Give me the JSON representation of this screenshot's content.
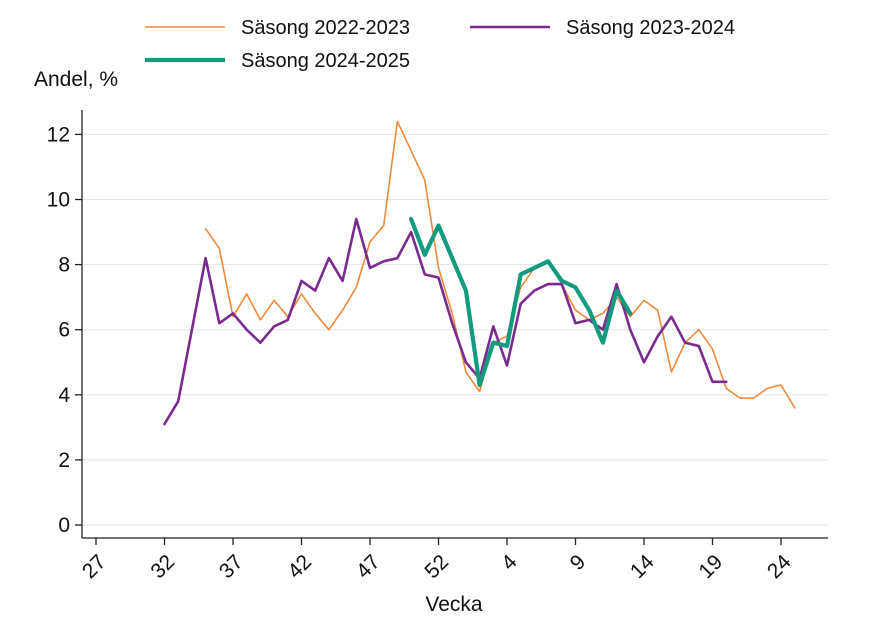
{
  "chart_data": {
    "type": "line",
    "ylabel": "Andel, %",
    "xlabel": "Vecka",
    "x_tick_labels": [
      "27",
      "32",
      "37",
      "42",
      "47",
      "52",
      "4",
      "9",
      "14",
      "19",
      "24"
    ],
    "y_tick_labels": [
      "0",
      "2",
      "4",
      "6",
      "8",
      "10",
      "12"
    ],
    "ylim": [
      0,
      12.5
    ],
    "grid": true,
    "legend_position": "top",
    "x_axis_note": "season week index 0 = week 27 ... 52 = week 27 of the following year",
    "series": [
      {
        "name": "Säsong 2022-2023",
        "color": "#f08a3c",
        "style": "thin",
        "points": [
          [
            8,
            9.1
          ],
          [
            9,
            8.5
          ],
          [
            10,
            6.4
          ],
          [
            11,
            7.1
          ],
          [
            12,
            6.3
          ],
          [
            13,
            6.9
          ],
          [
            14,
            6.4
          ],
          [
            15,
            7.1
          ],
          [
            16,
            6.5
          ],
          [
            17,
            6.0
          ],
          [
            18,
            6.6
          ],
          [
            19,
            7.3
          ],
          [
            20,
            8.7
          ],
          [
            21,
            9.2
          ],
          [
            22,
            12.4
          ],
          [
            23,
            11.5
          ],
          [
            24,
            10.6
          ],
          [
            25,
            7.9
          ],
          [
            26,
            6.5
          ],
          [
            27,
            4.7
          ],
          [
            28,
            4.1
          ],
          [
            29,
            5.6
          ],
          [
            30,
            5.8
          ],
          [
            31,
            7.3
          ],
          [
            32,
            7.9
          ],
          [
            33,
            8.1
          ],
          [
            34,
            7.4
          ],
          [
            35,
            6.6
          ],
          [
            36,
            6.3
          ],
          [
            37,
            6.5
          ],
          [
            38,
            7.0
          ],
          [
            39,
            6.4
          ],
          [
            40,
            6.9
          ],
          [
            41,
            6.6
          ],
          [
            42,
            4.7
          ],
          [
            43,
            5.6
          ],
          [
            44,
            6.0
          ],
          [
            45,
            5.4
          ],
          [
            46,
            4.2
          ],
          [
            47,
            3.9
          ],
          [
            48,
            3.9
          ],
          [
            49,
            4.2
          ],
          [
            50,
            4.3
          ],
          [
            51,
            3.6
          ]
        ]
      },
      {
        "name": "Säsong 2023-2024",
        "color": "#7a2b8e",
        "style": "medium",
        "points": [
          [
            5,
            3.1
          ],
          [
            6,
            3.8
          ],
          [
            7,
            6.0
          ],
          [
            8,
            8.2
          ],
          [
            9,
            6.2
          ],
          [
            10,
            6.5
          ],
          [
            11,
            6.0
          ],
          [
            12,
            5.6
          ],
          [
            13,
            6.1
          ],
          [
            14,
            6.3
          ],
          [
            15,
            7.5
          ],
          [
            16,
            7.2
          ],
          [
            17,
            8.2
          ],
          [
            18,
            7.5
          ],
          [
            19,
            9.4
          ],
          [
            20,
            7.9
          ],
          [
            21,
            8.1
          ],
          [
            22,
            8.2
          ],
          [
            23,
            9.0
          ],
          [
            24,
            7.7
          ],
          [
            25,
            7.6
          ],
          [
            26,
            6.2
          ],
          [
            27,
            5.0
          ],
          [
            28,
            4.5
          ],
          [
            29,
            6.1
          ],
          [
            30,
            4.9
          ],
          [
            31,
            6.8
          ],
          [
            32,
            7.2
          ],
          [
            33,
            7.4
          ],
          [
            34,
            7.4
          ],
          [
            35,
            6.2
          ],
          [
            36,
            6.3
          ],
          [
            37,
            6.0
          ],
          [
            38,
            7.4
          ],
          [
            39,
            6.0
          ],
          [
            40,
            5.0
          ],
          [
            41,
            5.8
          ],
          [
            42,
            6.4
          ],
          [
            43,
            5.6
          ],
          [
            44,
            5.5
          ],
          [
            45,
            4.4
          ],
          [
            46,
            4.4
          ]
        ]
      },
      {
        "name": "Säsong 2024-2025",
        "color": "#129b7e",
        "style": "thick",
        "points": [
          [
            23,
            9.4
          ],
          [
            24,
            8.3
          ],
          [
            25,
            9.2
          ],
          [
            26,
            8.2
          ],
          [
            27,
            7.2
          ],
          [
            28,
            4.3
          ],
          [
            29,
            5.6
          ],
          [
            30,
            5.5
          ],
          [
            31,
            7.7
          ],
          [
            32,
            7.9
          ],
          [
            33,
            8.1
          ],
          [
            34,
            7.5
          ],
          [
            35,
            7.3
          ],
          [
            36,
            6.6
          ],
          [
            37,
            5.6
          ],
          [
            38,
            7.2
          ],
          [
            39,
            6.5
          ]
        ]
      }
    ]
  }
}
